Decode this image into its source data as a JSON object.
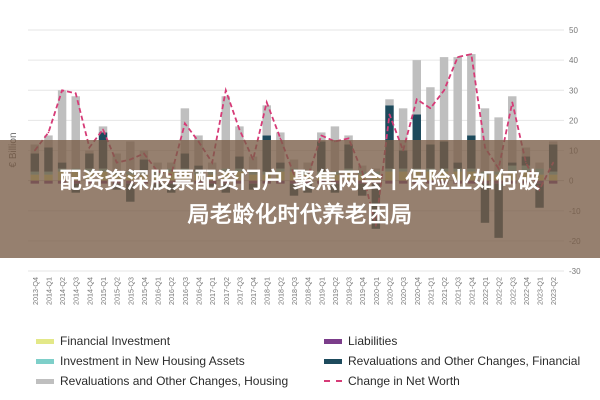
{
  "chart_data": {
    "type": "bar",
    "ylabel": "€ Billion",
    "ylim": [
      -30,
      50
    ],
    "yticks": [
      -30,
      -20,
      -10,
      0,
      10,
      20,
      30,
      40,
      50
    ],
    "categories": [
      "2013-Q4",
      "2014-Q1",
      "2014-Q2",
      "2014-Q3",
      "2014-Q4",
      "2015-Q1",
      "2015-Q2",
      "2015-Q3",
      "2015-Q4",
      "2016-Q1",
      "2016-Q2",
      "2016-Q3",
      "2016-Q4",
      "2017-Q1",
      "2017-Q2",
      "2017-Q3",
      "2017-Q4",
      "2018-Q1",
      "2018-Q2",
      "2018-Q3",
      "2018-Q4",
      "2019-Q1",
      "2019-Q2",
      "2019-Q3",
      "2019-Q4",
      "2020-Q1",
      "2020-Q2",
      "2020-Q3",
      "2020-Q4",
      "2021-Q1",
      "2021-Q2",
      "2021-Q3",
      "2021-Q4",
      "2022-Q1",
      "2022-Q2",
      "2022-Q3",
      "2022-Q4",
      "2023-Q1",
      "2023-Q2"
    ],
    "series": [
      {
        "name": "Financial Investment",
        "color": "#e3e888",
        "values": [
          2,
          2,
          3,
          3,
          3,
          3,
          2,
          2,
          2,
          2,
          3,
          3,
          2,
          2,
          3,
          3,
          2,
          2,
          3,
          3,
          2,
          2,
          2,
          3,
          2,
          2,
          3,
          3,
          3,
          3,
          3,
          3,
          3,
          2,
          2,
          3,
          3,
          2,
          2
        ]
      },
      {
        "name": "Liabilities",
        "color": "#7b3d8a",
        "values": [
          -1,
          -1,
          -1,
          -1,
          -1,
          -1,
          -1,
          -1,
          -1,
          -1,
          -1,
          -1,
          -1,
          -1,
          -1,
          -1,
          -1,
          -1,
          -1,
          -1,
          -1,
          -1,
          -1,
          -1,
          -1,
          -1,
          -1,
          -1,
          -1,
          -1,
          -1,
          -1,
          -1,
          -1,
          -1,
          -1,
          -1,
          -1,
          -1
        ]
      },
      {
        "name": "Investment in New Housing Assets",
        "color": "#7ecfc9",
        "values": [
          1,
          1,
          1,
          1,
          1,
          1,
          1,
          1,
          1,
          1,
          1,
          1,
          1,
          1,
          1,
          1,
          1,
          1,
          1,
          1,
          1,
          1,
          1,
          1,
          1,
          1,
          1,
          1,
          1,
          1,
          1,
          1,
          1,
          1,
          1,
          2,
          2,
          2,
          1
        ]
      },
      {
        "name": "Revaluations and Other Changes, Financial",
        "color": "#1d4a5c",
        "values": [
          6,
          8,
          2,
          -3,
          5,
          12,
          -2,
          -6,
          4,
          -2,
          -3,
          5,
          2,
          -1,
          -3,
          4,
          -2,
          12,
          2,
          -4,
          -3,
          10,
          -3,
          8,
          -4,
          -15,
          21,
          6,
          18,
          8,
          9,
          2,
          11,
          -13,
          -18,
          1,
          3,
          -8,
          9
        ]
      },
      {
        "name": "Revaluations and Other Changes, Housing",
        "color": "#bfbfbf",
        "values": [
          3,
          4,
          24,
          24,
          1,
          2,
          6,
          10,
          3,
          3,
          2,
          15,
          10,
          3,
          24,
          10,
          5,
          10,
          10,
          3,
          3,
          3,
          15,
          3,
          2,
          1,
          2,
          14,
          18,
          19,
          28,
          35,
          27,
          21,
          18,
          22,
          3,
          2,
          1
        ]
      }
    ],
    "net_worth": [
      10,
      16,
      30,
      29,
      11,
      17,
      6,
      7,
      9,
      3,
      2,
      19,
      13,
      6,
      30,
      17,
      7,
      26,
      14,
      2,
      1,
      15,
      13,
      14,
      3,
      -15,
      22,
      10,
      27,
      24,
      30,
      41,
      42,
      11,
      4,
      26,
      6,
      -3,
      6
    ]
  },
  "legend": {
    "financial_investment": "Financial Investment",
    "liabilities": "Liabilities",
    "new_housing": "Investment in New Housing Assets",
    "reval_financial": "Revaluations and Other Changes, Financial",
    "reval_housing": "Revaluations and Other Changes, Housing",
    "net_worth": "Change in Net Worth"
  },
  "overlay": {
    "line1": "配资资深股票配资门户 聚焦两会丨保险业如何破",
    "line2": "局老龄化时代养老困局"
  },
  "colors": {
    "net_worth_line": "#d63b77",
    "axis_text": "#777777",
    "grid": "#e6e6e6"
  }
}
